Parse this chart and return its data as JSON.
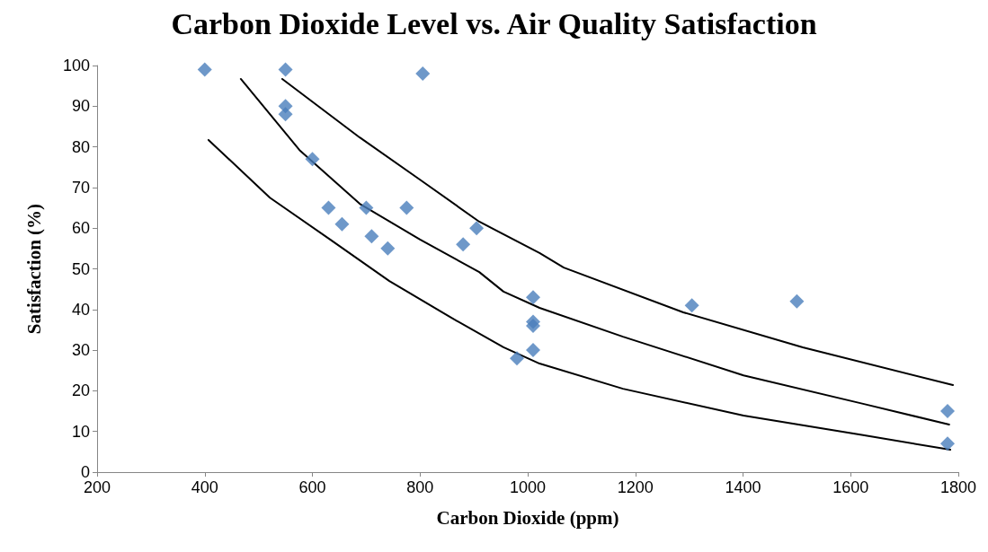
{
  "chart_data": {
    "type": "scatter",
    "title": "Carbon Dioxide Level vs. Air Quality Satisfaction",
    "xlabel": "Carbon Dioxide (ppm)",
    "ylabel": "Satisfaction (%)",
    "xlim": [
      200,
      1800
    ],
    "xticks": [
      200,
      400,
      600,
      800,
      1000,
      1200,
      1400,
      1600,
      1800
    ],
    "ylim": [
      0,
      100
    ],
    "yticks": [
      0,
      10,
      20,
      30,
      40,
      50,
      60,
      70,
      80,
      90,
      100
    ],
    "grid": false,
    "marker": "diamond",
    "series": [
      {
        "color": "#4a7ebb",
        "x": [
          400,
          550,
          550,
          550,
          600,
          630,
          655,
          700,
          710,
          740,
          775,
          805,
          880,
          905,
          980,
          1010,
          1010,
          1010,
          1010,
          1305,
          1500,
          1780,
          1780
        ],
        "values": [
          99,
          99,
          90,
          88,
          77,
          65,
          61,
          65,
          58,
          55,
          65,
          98,
          56,
          60,
          28,
          43,
          37,
          36,
          30,
          41,
          42,
          15,
          7
        ]
      },
      {
        "type": "line",
        "color": "#000000",
        "marker": "none",
        "line_style": "solid",
        "x": [
          544,
          688,
          800,
          910,
          1022,
          1067,
          1289,
          1511,
          1790
        ],
        "values": [
          96.7,
          82.3,
          71.9,
          61.6,
          53.9,
          50.3,
          39.3,
          30.7,
          21.4
        ]
      },
      {
        "type": "line",
        "color": "#000000",
        "marker": "none",
        "line_style": "solid",
        "x": [
          467,
          576,
          688,
          800,
          910,
          955,
          1022,
          1177,
          1401,
          1623,
          1783
        ],
        "values": [
          96.7,
          79.2,
          66.0,
          57.2,
          49.2,
          44.4,
          40.4,
          33.3,
          23.8,
          16.8,
          11.7
        ]
      },
      {
        "type": "line",
        "color": "#000000",
        "marker": "none",
        "line_style": "solid",
        "x": [
          407,
          521,
          633,
          743,
          855,
          955,
          1022,
          1177,
          1401,
          1623,
          1785
        ],
        "values": [
          81.7,
          67.5,
          57.2,
          47.0,
          38.2,
          30.7,
          26.7,
          20.5,
          13.9,
          9.1,
          5.5
        ]
      }
    ]
  }
}
